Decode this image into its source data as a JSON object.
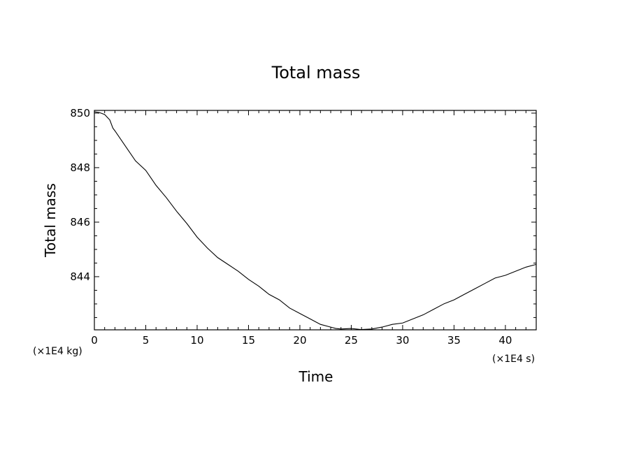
{
  "chart_data": {
    "type": "line",
    "title": "Total mass",
    "xlabel": "Time",
    "ylabel": "Total mass",
    "x_unit": "(×1E4 s)",
    "y_unit": "(×1E4 kg)",
    "xlim": [
      0,
      43
    ],
    "ylim": [
      842.05,
      850.1
    ],
    "x_ticks": [
      0,
      5,
      10,
      15,
      20,
      25,
      30,
      35,
      40
    ],
    "x_tick_labels": [
      "0",
      "5",
      "10",
      "15",
      "20",
      "25",
      "30",
      "35",
      "40"
    ],
    "y_ticks": [
      844,
      846,
      848,
      850
    ],
    "y_tick_labels": [
      "844",
      "846",
      "848",
      "850"
    ],
    "grid": false,
    "legend": "none",
    "line_color": "#000000",
    "series": [
      {
        "x": [
          0,
          0.5,
          1,
          1.5,
          1.8,
          2,
          3,
          4,
          5,
          6,
          7,
          8,
          9,
          10,
          11,
          12,
          13,
          14,
          15,
          16,
          17,
          18,
          19,
          20,
          21,
          22,
          23,
          23.5,
          24,
          25,
          26,
          27,
          28,
          29,
          30,
          31,
          32,
          33,
          34,
          35,
          36,
          37,
          38,
          39,
          40,
          41,
          42,
          43
        ],
        "y": [
          850.05,
          850.02,
          849.95,
          849.75,
          849.45,
          849.35,
          848.8,
          848.25,
          847.9,
          847.35,
          846.9,
          846.4,
          845.95,
          845.45,
          845.05,
          844.7,
          844.45,
          844.2,
          843.9,
          843.65,
          843.35,
          843.15,
          842.85,
          842.65,
          842.45,
          842.25,
          842.15,
          842.1,
          842.08,
          842.1,
          842.06,
          842.08,
          842.15,
          842.25,
          842.3,
          842.45,
          842.6,
          842.8,
          843.0,
          843.15,
          843.35,
          843.55,
          843.75,
          843.95,
          844.05,
          844.2,
          844.35,
          844.45
        ]
      }
    ]
  }
}
